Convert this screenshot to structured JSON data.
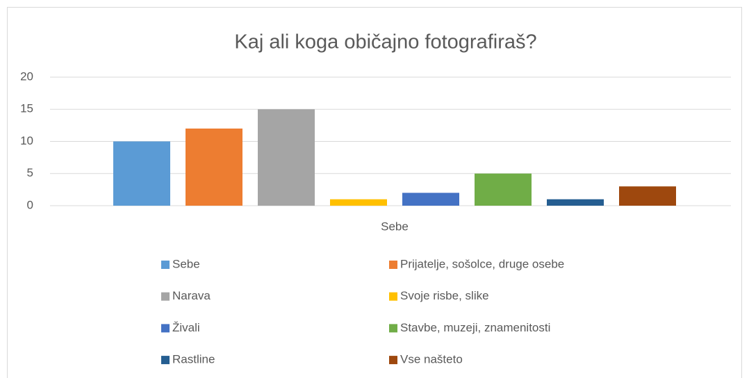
{
  "chart_data": {
    "type": "bar",
    "title": "Kaj ali koga običajno fotografiraš?",
    "categories": [
      "Sebe"
    ],
    "series": [
      {
        "name": "Sebe",
        "color": "#5b9bd5",
        "values": [
          10
        ]
      },
      {
        "name": "Prijatelje, sošolce, druge osebe",
        "color": "#ed7d31",
        "values": [
          12
        ]
      },
      {
        "name": "Narava",
        "color": "#a5a5a5",
        "values": [
          15
        ]
      },
      {
        "name": "Svoje risbe, slike",
        "color": "#ffc000",
        "values": [
          1
        ]
      },
      {
        "name": "Živali",
        "color": "#4472c4",
        "values": [
          2
        ]
      },
      {
        "name": "Stavbe, muzeji, znamenitosti",
        "color": "#70ad47",
        "values": [
          5
        ]
      },
      {
        "name": "Rastline",
        "color": "#255e91",
        "values": [
          1
        ]
      },
      {
        "name": "Vse našteto",
        "color": "#9e480e",
        "values": [
          3
        ]
      }
    ],
    "ylim": [
      0,
      20
    ],
    "yticks": [
      0,
      5,
      10,
      15,
      20
    ],
    "grid": true,
    "legend": "bottom"
  }
}
